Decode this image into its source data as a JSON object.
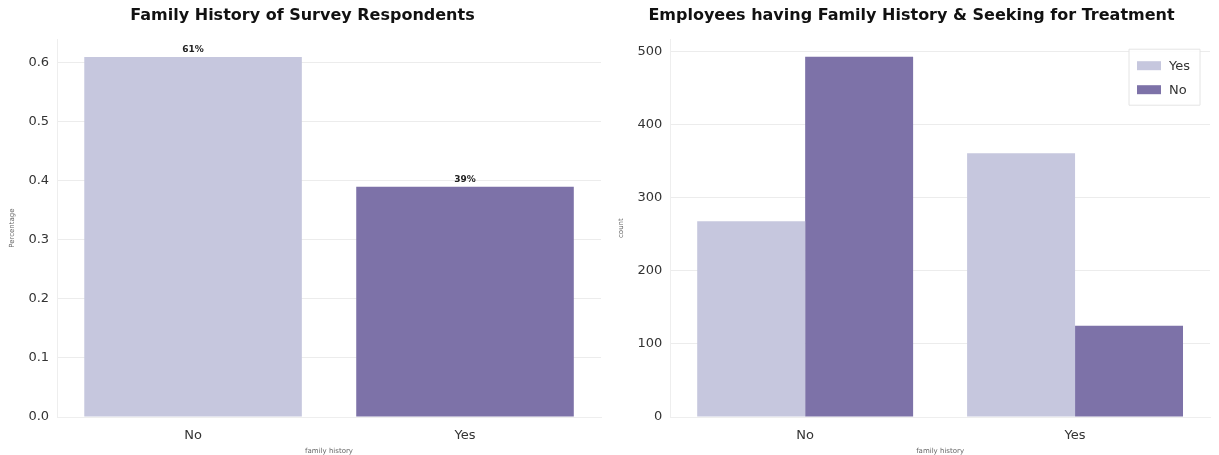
{
  "chart_data": [
    {
      "type": "bar",
      "title": "Family History of Survey Respondents",
      "xlabel": "family history",
      "ylabel": "Percentage",
      "categories": [
        "No",
        "Yes"
      ],
      "values": [
        0.61,
        0.39
      ],
      "colors": [
        "#c6c7de",
        "#7d72a8"
      ],
      "value_labels": [
        "61%",
        "39%"
      ],
      "ylim": [
        0,
        0.64
      ],
      "yticks": [
        {
          "value": 0,
          "label": "0.0"
        },
        0.1,
        0.2,
        0.3,
        0.4,
        0.5,
        0.6
      ],
      "grid": true
    },
    {
      "type": "bar",
      "title": "Employees having Family History & Seeking for Treatment",
      "xlabel": "family history",
      "ylabel": "count",
      "categories": [
        "No",
        "Yes"
      ],
      "series": [
        {
          "name": "Yes",
          "color": "#c6c7de",
          "values": [
            268,
            361
          ]
        },
        {
          "name": "No",
          "color": "#7d72a8",
          "values": [
            493,
            125
          ]
        }
      ],
      "ylim": [
        0,
        517
      ],
      "yticks": [
        0,
        100,
        200,
        300,
        400,
        500
      ],
      "grid": true,
      "legend": "top right"
    }
  ]
}
